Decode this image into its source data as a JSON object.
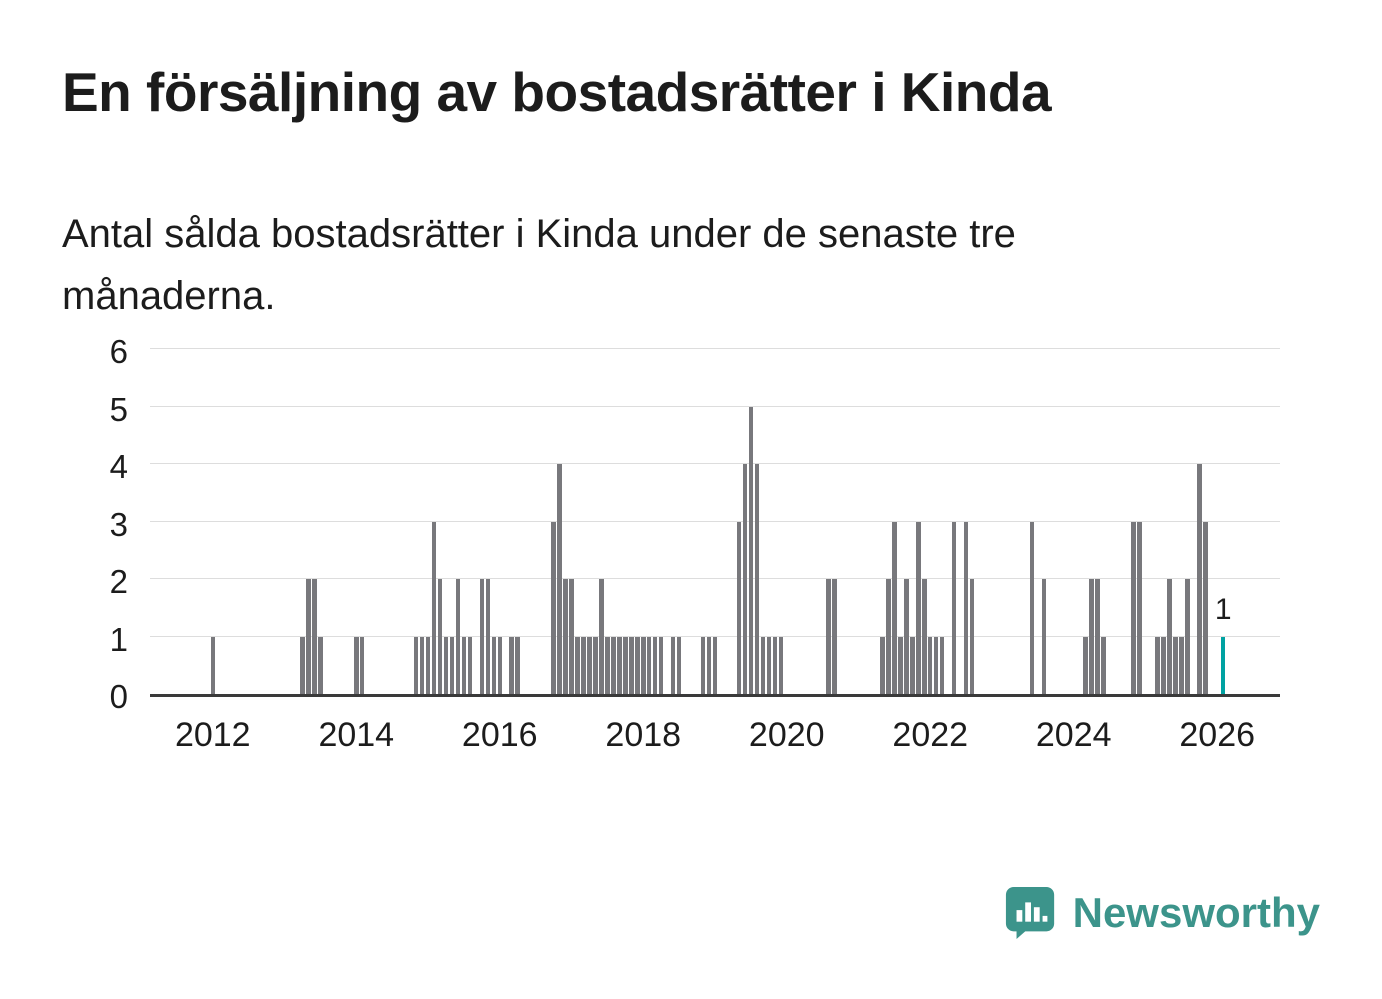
{
  "header": {
    "title": "En försäljning av bostadsrätter i Kinda",
    "subtitle": "Antal sålda bostadsrätter i Kinda under de senaste tre månaderna."
  },
  "branding": {
    "name": "Newsworthy",
    "color": "#3c948b"
  },
  "chart_data": {
    "type": "bar",
    "title": "En försäljning av bostadsrätter i Kinda",
    "subtitle": "Antal sålda bostadsrätter i Kinda under de senaste tre månaderna.",
    "xlabel": "",
    "ylabel": "",
    "ylim": [
      0,
      6
    ],
    "yticks": [
      0,
      1,
      2,
      3,
      4,
      5,
      6
    ],
    "xticks": [
      2012,
      2014,
      2016,
      2018,
      2020,
      2022,
      2024,
      2026
    ],
    "grid": true,
    "legend": false,
    "bar_color": "#78787c",
    "highlight_color": "#00a2a2",
    "axis_color": "#3a3a3a",
    "gridline_color": "#dddddd",
    "last_bar_label": "1",
    "x_domain": {
      "start": "2011-03",
      "months": 189
    },
    "bars": [
      [
        "2012-01",
        1
      ],
      [
        "2013-04",
        1
      ],
      [
        "2013-05",
        2
      ],
      [
        "2013-06",
        2
      ],
      [
        "2013-07",
        1
      ],
      [
        "2014-01",
        1
      ],
      [
        "2014-02",
        1
      ],
      [
        "2014-11",
        1
      ],
      [
        "2014-12",
        1
      ],
      [
        "2015-01",
        1
      ],
      [
        "2015-02",
        3
      ],
      [
        "2015-03",
        2
      ],
      [
        "2015-04",
        1
      ],
      [
        "2015-05",
        1
      ],
      [
        "2015-06",
        2
      ],
      [
        "2015-07",
        1
      ],
      [
        "2015-08",
        1
      ],
      [
        "2015-10",
        2
      ],
      [
        "2015-11",
        2
      ],
      [
        "2015-12",
        1
      ],
      [
        "2016-01",
        1
      ],
      [
        "2016-03",
        1
      ],
      [
        "2016-04",
        1
      ],
      [
        "2016-10",
        3
      ],
      [
        "2016-11",
        4
      ],
      [
        "2016-12",
        2
      ],
      [
        "2017-01",
        2
      ],
      [
        "2017-02",
        1
      ],
      [
        "2017-03",
        1
      ],
      [
        "2017-04",
        1
      ],
      [
        "2017-05",
        1
      ],
      [
        "2017-06",
        2
      ],
      [
        "2017-07",
        1
      ],
      [
        "2017-08",
        1
      ],
      [
        "2017-09",
        1
      ],
      [
        "2017-10",
        1
      ],
      [
        "2017-11",
        1
      ],
      [
        "2017-12",
        1
      ],
      [
        "2018-01",
        1
      ],
      [
        "2018-02",
        1
      ],
      [
        "2018-03",
        1
      ],
      [
        "2018-04",
        1
      ],
      [
        "2018-06",
        1
      ],
      [
        "2018-07",
        1
      ],
      [
        "2018-11",
        1
      ],
      [
        "2018-12",
        1
      ],
      [
        "2019-01",
        1
      ],
      [
        "2019-05",
        3
      ],
      [
        "2019-06",
        4
      ],
      [
        "2019-07",
        5
      ],
      [
        "2019-08",
        4
      ],
      [
        "2019-09",
        1
      ],
      [
        "2019-10",
        1
      ],
      [
        "2019-11",
        1
      ],
      [
        "2019-12",
        1
      ],
      [
        "2020-08",
        2
      ],
      [
        "2020-09",
        2
      ],
      [
        "2021-05",
        1
      ],
      [
        "2021-06",
        2
      ],
      [
        "2021-07",
        3
      ],
      [
        "2021-08",
        1
      ],
      [
        "2021-09",
        2
      ],
      [
        "2021-10",
        1
      ],
      [
        "2021-11",
        3
      ],
      [
        "2021-12",
        2
      ],
      [
        "2022-01",
        1
      ],
      [
        "2022-02",
        1
      ],
      [
        "2022-03",
        1
      ],
      [
        "2022-05",
        3
      ],
      [
        "2022-07",
        3
      ],
      [
        "2022-08",
        2
      ],
      [
        "2023-06",
        3
      ],
      [
        "2023-08",
        2
      ],
      [
        "2024-03",
        1
      ],
      [
        "2024-04",
        2
      ],
      [
        "2024-05",
        2
      ],
      [
        "2024-06",
        1
      ],
      [
        "2024-11",
        3
      ],
      [
        "2024-12",
        3
      ],
      [
        "2025-03",
        1
      ],
      [
        "2025-04",
        1
      ],
      [
        "2025-05",
        2
      ],
      [
        "2025-06",
        1
      ],
      [
        "2025-07",
        1
      ],
      [
        "2025-08",
        2
      ],
      [
        "2025-10",
        4
      ],
      [
        "2025-11",
        3
      ],
      [
        "2026-02",
        1
      ]
    ]
  }
}
